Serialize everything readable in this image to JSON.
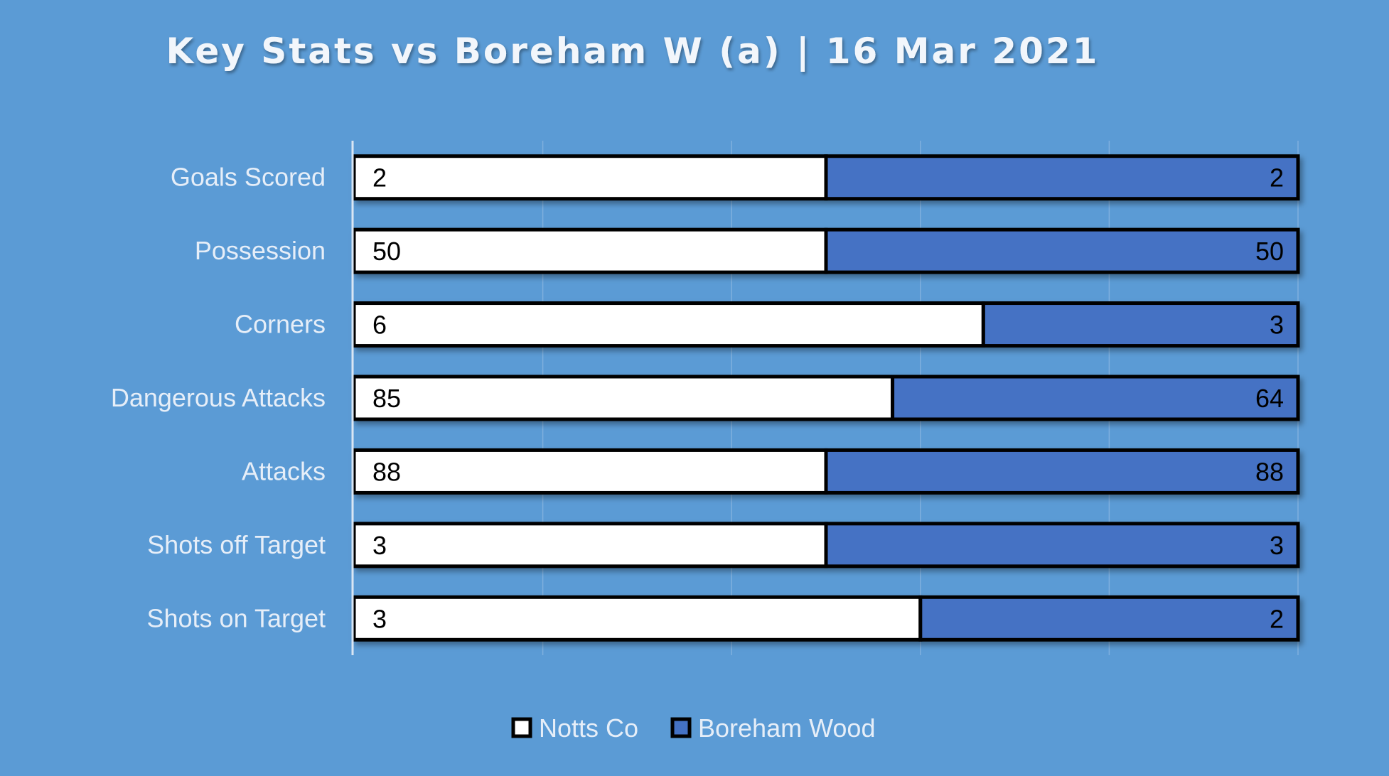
{
  "chart_data": {
    "type": "bar",
    "orientation": "horizontal",
    "stacked": "percent",
    "title": "Key Stats vs Boreham W (a) | 16 Mar 2021",
    "categories": [
      "Goals Scored",
      "Possession",
      "Corners",
      "Dangerous Attacks",
      "Attacks",
      "Shots off Target",
      "Shots on Target"
    ],
    "series": [
      {
        "name": "Notts Co",
        "values": [
          2,
          50,
          6,
          85,
          88,
          3,
          3
        ]
      },
      {
        "name": "Boreham Wood",
        "values": [
          2,
          50,
          3,
          64,
          88,
          3,
          2
        ]
      }
    ],
    "xlim": [
      0,
      100
    ],
    "grid": true,
    "legend": "bottom",
    "colors": {
      "background": "#5b9bd5",
      "Notts Co": "#ffffff",
      "Boreham Wood": "#4472c4",
      "bar_outline": "#000000",
      "grid": "#7fb0de"
    }
  }
}
